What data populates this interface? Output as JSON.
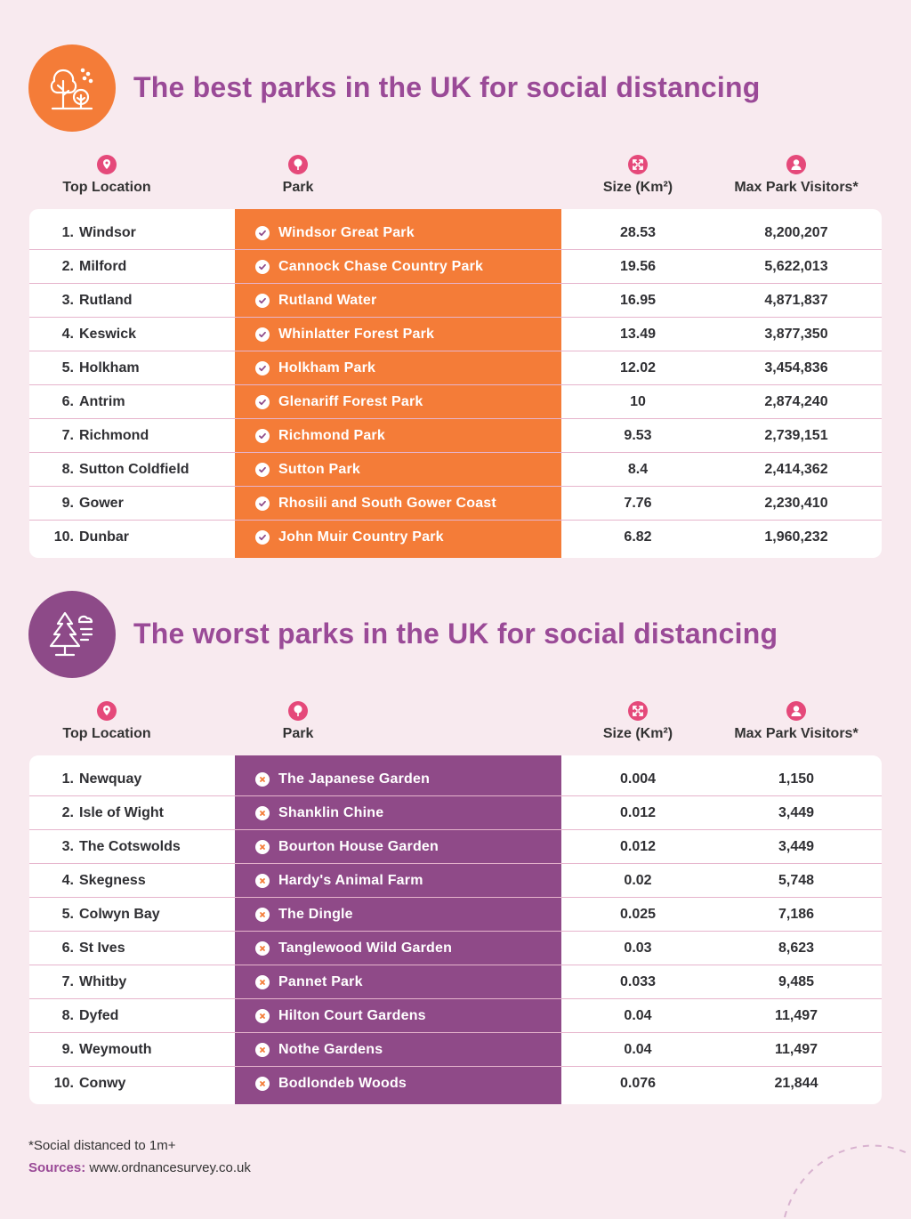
{
  "colors": {
    "background": "#f8eaef",
    "best_accent": "#f47c38",
    "worst_accent": "#8f4a88",
    "title": "#9a4a97",
    "row_divider": "#e6b4cc"
  },
  "headers": {
    "location": "Top Location",
    "park": "Park",
    "size": "Size (Km²)",
    "visitors": "Max Park Visitors*"
  },
  "best": {
    "title": "The best parks in the UK for social distancing",
    "icon": "trees-icon",
    "rows": [
      {
        "rank": "1.",
        "location": "Windsor",
        "park": "Windsor Great Park",
        "size": "28.53",
        "visitors": "8,200,207"
      },
      {
        "rank": "2.",
        "location": "Milford",
        "park": "Cannock Chase Country Park",
        "size": "19.56",
        "visitors": "5,622,013"
      },
      {
        "rank": "3.",
        "location": "Rutland",
        "park": "Rutland Water",
        "size": "16.95",
        "visitors": "4,871,837"
      },
      {
        "rank": "4.",
        "location": "Keswick",
        "park": "Whinlatter Forest Park",
        "size": "13.49",
        "visitors": "3,877,350"
      },
      {
        "rank": "5.",
        "location": "Holkham",
        "park": "Holkham Park",
        "size": "12.02",
        "visitors": "3,454,836"
      },
      {
        "rank": "6.",
        "location": "Antrim",
        "park": "Glenariff Forest Park",
        "size": "10",
        "visitors": "2,874,240"
      },
      {
        "rank": "7.",
        "location": "Richmond",
        "park": "Richmond Park",
        "size": "9.53",
        "visitors": "2,739,151"
      },
      {
        "rank": "8.",
        "location": "Sutton Coldfield",
        "park": "Sutton Park",
        "size": "8.4",
        "visitors": "2,414,362"
      },
      {
        "rank": "9.",
        "location": "Gower",
        "park": "Rhosili and South Gower Coast",
        "size": "7.76",
        "visitors": "2,230,410"
      },
      {
        "rank": "10.",
        "location": "Dunbar",
        "park": "John Muir Country Park",
        "size": "6.82",
        "visitors": "1,960,232"
      }
    ]
  },
  "worst": {
    "title": "The worst parks in the UK for social distancing",
    "icon": "pine-tree-wind-icon",
    "rows": [
      {
        "rank": "1.",
        "location": "Newquay",
        "park": "The Japanese Garden",
        "size": "0.004",
        "visitors": "1,150"
      },
      {
        "rank": "2.",
        "location": "Isle of Wight",
        "park": "Shanklin Chine",
        "size": "0.012",
        "visitors": "3,449"
      },
      {
        "rank": "3.",
        "location": "The Cotswolds",
        "park": "Bourton House Garden",
        "size": "0.012",
        "visitors": "3,449"
      },
      {
        "rank": "4.",
        "location": "Skegness",
        "park": "Hardy's Animal Farm",
        "size": "0.02",
        "visitors": "5,748"
      },
      {
        "rank": "5.",
        "location": "Colwyn Bay",
        "park": "The Dingle",
        "size": "0.025",
        "visitors": "7,186"
      },
      {
        "rank": "6.",
        "location": "St Ives",
        "park": "Tanglewood Wild Garden",
        "size": "0.03",
        "visitors": "8,623"
      },
      {
        "rank": "7.",
        "location": "Whitby",
        "park": "Pannet Park",
        "size": "0.033",
        "visitors": "9,485"
      },
      {
        "rank": "8.",
        "location": "Dyfed",
        "park": "Hilton Court Gardens",
        "size": "0.04",
        "visitors": "11,497"
      },
      {
        "rank": "9.",
        "location": "Weymouth",
        "park": "Nothe Gardens",
        "size": "0.04",
        "visitors": "11,497"
      },
      {
        "rank": "10.",
        "location": "Conwy",
        "park": "Bodlondeb Woods",
        "size": "0.076",
        "visitors": "21,844"
      }
    ]
  },
  "footnote": "*Social distanced to 1m+",
  "sources": {
    "label": "Sources:",
    "value": "www.ordnancesurvey.co.uk"
  }
}
